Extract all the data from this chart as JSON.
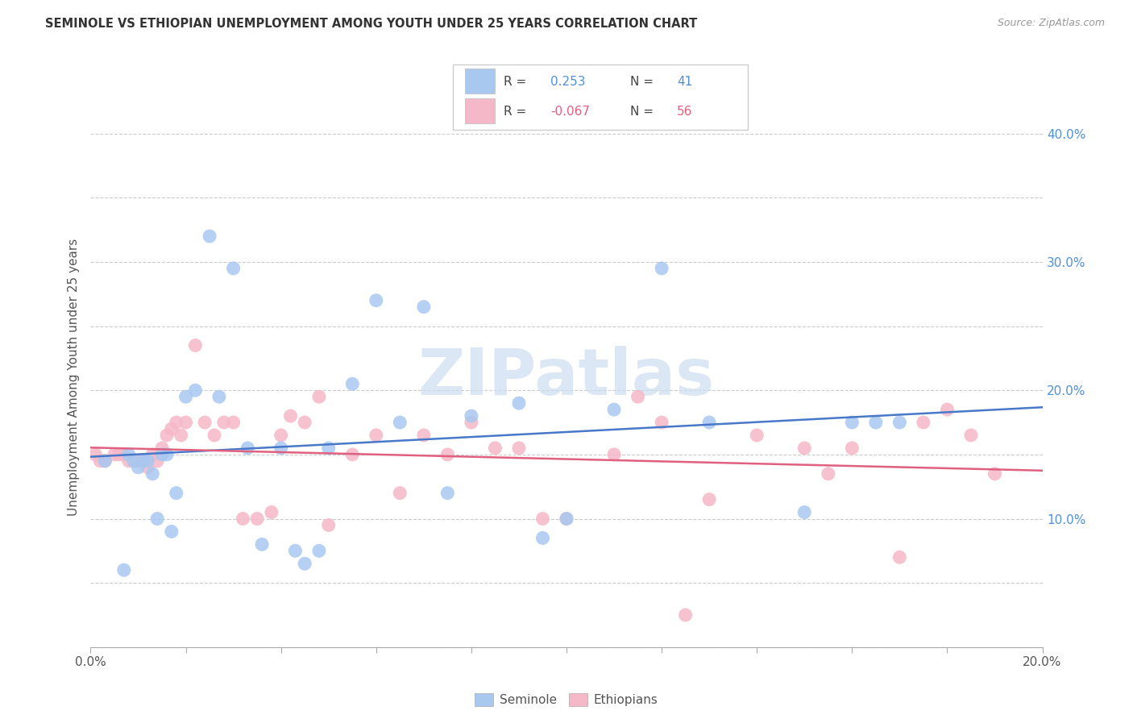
{
  "title": "SEMINOLE VS ETHIOPIAN UNEMPLOYMENT AMONG YOUTH UNDER 25 YEARS CORRELATION CHART",
  "source": "Source: ZipAtlas.com",
  "ylabel": "Unemployment Among Youth under 25 years",
  "xlim": [
    0.0,
    0.2
  ],
  "ylim": [
    0.0,
    0.42
  ],
  "y_ticks": [
    0.0,
    0.05,
    0.1,
    0.15,
    0.2,
    0.25,
    0.3,
    0.35,
    0.4
  ],
  "x_ticks": [
    0.0,
    0.02,
    0.04,
    0.06,
    0.08,
    0.1,
    0.12,
    0.14,
    0.16,
    0.18,
    0.2
  ],
  "seminole_R": 0.253,
  "seminole_N": 41,
  "ethiopian_R": -0.067,
  "ethiopian_N": 56,
  "seminole_color": "#a8c8f0",
  "ethiopian_color": "#f5b8c8",
  "seminole_line_color": "#4878c8",
  "ethiopian_line_color": "#e06080",
  "right_tick_color": "#5090d8",
  "watermark_color": "#ccddf0",
  "seminole_x": [
    0.003,
    0.007,
    0.008,
    0.009,
    0.01,
    0.011,
    0.012,
    0.013,
    0.014,
    0.015,
    0.016,
    0.017,
    0.018,
    0.02,
    0.022,
    0.025,
    0.027,
    0.03,
    0.033,
    0.036,
    0.04,
    0.043,
    0.045,
    0.048,
    0.05,
    0.055,
    0.06,
    0.065,
    0.07,
    0.075,
    0.08,
    0.09,
    0.095,
    0.1,
    0.11,
    0.12,
    0.13,
    0.15,
    0.16,
    0.165,
    0.17
  ],
  "seminole_y": [
    0.145,
    0.06,
    0.15,
    0.145,
    0.14,
    0.145,
    0.145,
    0.135,
    0.1,
    0.15,
    0.15,
    0.09,
    0.12,
    0.195,
    0.2,
    0.32,
    0.195,
    0.295,
    0.155,
    0.08,
    0.155,
    0.075,
    0.065,
    0.075,
    0.155,
    0.205,
    0.27,
    0.175,
    0.265,
    0.12,
    0.18,
    0.19,
    0.085,
    0.1,
    0.185,
    0.295,
    0.175,
    0.105,
    0.175,
    0.175,
    0.175
  ],
  "ethiopian_x": [
    0.001,
    0.002,
    0.003,
    0.005,
    0.006,
    0.007,
    0.008,
    0.009,
    0.01,
    0.011,
    0.012,
    0.013,
    0.014,
    0.015,
    0.016,
    0.017,
    0.018,
    0.019,
    0.02,
    0.022,
    0.024,
    0.026,
    0.028,
    0.03,
    0.032,
    0.035,
    0.038,
    0.04,
    0.042,
    0.045,
    0.048,
    0.05,
    0.055,
    0.06,
    0.065,
    0.07,
    0.075,
    0.08,
    0.085,
    0.09,
    0.095,
    0.1,
    0.11,
    0.115,
    0.12,
    0.125,
    0.13,
    0.14,
    0.15,
    0.155,
    0.16,
    0.17,
    0.175,
    0.18,
    0.185,
    0.19
  ],
  "ethiopian_y": [
    0.15,
    0.145,
    0.145,
    0.15,
    0.15,
    0.15,
    0.145,
    0.145,
    0.145,
    0.145,
    0.14,
    0.15,
    0.145,
    0.155,
    0.165,
    0.17,
    0.175,
    0.165,
    0.175,
    0.235,
    0.175,
    0.165,
    0.175,
    0.175,
    0.1,
    0.1,
    0.105,
    0.165,
    0.18,
    0.175,
    0.195,
    0.095,
    0.15,
    0.165,
    0.12,
    0.165,
    0.15,
    0.175,
    0.155,
    0.155,
    0.1,
    0.1,
    0.15,
    0.195,
    0.175,
    0.025,
    0.115,
    0.165,
    0.155,
    0.135,
    0.155,
    0.07,
    0.175,
    0.185,
    0.165,
    0.135
  ]
}
